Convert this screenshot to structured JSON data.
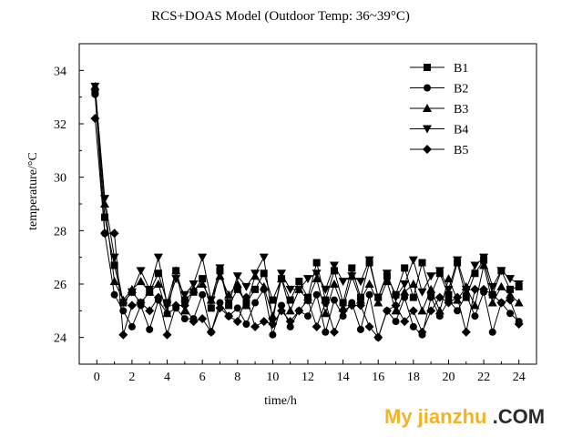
{
  "chart_data": {
    "type": "line",
    "title": "RCS+DOAS Model (Outdoor Temp: 36~39°C)",
    "xlabel": "time/h",
    "ylabel": "temperature/°C",
    "xlim": [
      -1,
      25
    ],
    "ylim": [
      23,
      35
    ],
    "xticks": [
      0,
      2,
      4,
      6,
      8,
      10,
      12,
      14,
      16,
      18,
      20,
      22,
      24
    ],
    "yticks": [
      24,
      26,
      28,
      30,
      32,
      34
    ],
    "xtick_labels": [
      "0",
      "2",
      "4",
      "6",
      "8",
      "10",
      "12",
      "14",
      "16",
      "18",
      "20",
      "22",
      "24"
    ],
    "ytick_labels": [
      "24",
      "26",
      "28",
      "30",
      "32",
      "34"
    ],
    "grid": false,
    "legend_position": "top-right",
    "x": [
      -0.1,
      0.45,
      1.0,
      1.5,
      2.0,
      2.5,
      3.0,
      3.5,
      4.0,
      4.5,
      5.0,
      5.5,
      6.0,
      6.5,
      7.0,
      7.5,
      8.0,
      8.5,
      9.0,
      9.5,
      10.0,
      10.5,
      11.0,
      11.5,
      12.0,
      12.5,
      13.0,
      13.5,
      14.0,
      14.5,
      15.0,
      15.5,
      16.0,
      16.5,
      17.0,
      17.5,
      18.0,
      18.5,
      19.0,
      19.5,
      20.0,
      20.5,
      21.0,
      21.5,
      22.0,
      22.5,
      23.0,
      23.5,
      24.0
    ],
    "series": [
      {
        "name": "B1",
        "marker": "square",
        "values": [
          33.2,
          28.5,
          26.7,
          25.3,
          25.7,
          25.3,
          25.7,
          26.4,
          25.3,
          26.5,
          25.4,
          25.7,
          26.2,
          25.1,
          26.5,
          25.2,
          25.8,
          25.3,
          25.8,
          26.4,
          25.4,
          26.2,
          25.4,
          26.1,
          25.5,
          26.8,
          25.4,
          26.5,
          25.3,
          26.6,
          25.5,
          26.8,
          25.5,
          26.3,
          25.6,
          26.6,
          25.5,
          26.8,
          25.6,
          26.4,
          25.6,
          26.8,
          25.5,
          26.4,
          26.9,
          25.6,
          26.5,
          25.8,
          25.9
        ]
      },
      {
        "name": "B2",
        "marker": "circle",
        "values": [
          33.1,
          27.9,
          25.6,
          25.0,
          24.4,
          25.2,
          24.3,
          25.4,
          24.9,
          25.1,
          24.7,
          24.7,
          25.6,
          24.2,
          25.3,
          24.8,
          25.1,
          24.5,
          25.3,
          25.8,
          24.1,
          25.2,
          24.4,
          25.0,
          24.8,
          25.6,
          24.2,
          25.4,
          24.8,
          25.3,
          24.3,
          25.6,
          24.0,
          25.0,
          24.6,
          25.5,
          24.4,
          24.1,
          25.5,
          24.8,
          25.4,
          25.0,
          25.6,
          24.8,
          25.7,
          24.2,
          25.3,
          24.9,
          24.6
        ]
      },
      {
        "name": "B3",
        "marker": "triangle-up",
        "values": [
          33.4,
          29.0,
          26.1,
          25.4,
          25.8,
          26.1,
          25.7,
          26.0,
          24.9,
          26.5,
          25.0,
          25.8,
          26.0,
          25.4,
          26.3,
          25.6,
          26.0,
          25.2,
          26.3,
          25.9,
          24.8,
          26.2,
          25.0,
          25.8,
          25.4,
          26.2,
          24.9,
          26.0,
          25.1,
          26.3,
          25.4,
          26.0,
          25.3,
          26.1,
          25.0,
          25.7,
          26.0,
          25.0,
          25.8,
          25.0,
          26.2,
          25.4,
          25.9,
          25.2,
          26.7,
          25.3,
          25.9,
          25.6,
          25.3
        ]
      },
      {
        "name": "B4",
        "marker": "triangle-down",
        "values": [
          33.4,
          29.2,
          27.0,
          25.3,
          25.7,
          26.5,
          25.8,
          27.0,
          25.2,
          26.2,
          25.6,
          26.0,
          27.0,
          25.4,
          26.6,
          25.3,
          26.3,
          25.9,
          26.4,
          27.0,
          24.6,
          26.4,
          25.8,
          25.8,
          26.2,
          26.4,
          25.8,
          26.7,
          26.1,
          26.3,
          26.1,
          26.9,
          25.5,
          26.4,
          25.5,
          26.0,
          26.9,
          25.7,
          26.3,
          26.5,
          25.8,
          26.9,
          25.8,
          26.7,
          27.0,
          25.9,
          26.5,
          26.2,
          26.0
        ]
      },
      {
        "name": "B5",
        "marker": "diamond",
        "values": [
          32.2,
          27.9,
          27.9,
          24.1,
          25.2,
          25.3,
          25.0,
          25.5,
          24.1,
          25.2,
          25.2,
          24.6,
          24.7,
          24.2,
          25.1,
          24.8,
          24.6,
          25.5,
          24.4,
          24.6,
          24.5,
          25.0,
          24.6,
          25.0,
          25.4,
          24.4,
          25.3,
          24.2,
          25.0,
          25.2,
          25.2,
          24.4,
          24.0,
          25.0,
          25.2,
          24.6,
          25.0,
          24.2,
          25.0,
          25.5,
          25.3,
          25.5,
          24.2,
          25.8,
          25.8,
          25.6,
          25.3,
          25.4,
          24.5
        ]
      }
    ]
  },
  "watermark": {
    "main": "My jianzhu",
    "tld": ".COM"
  }
}
